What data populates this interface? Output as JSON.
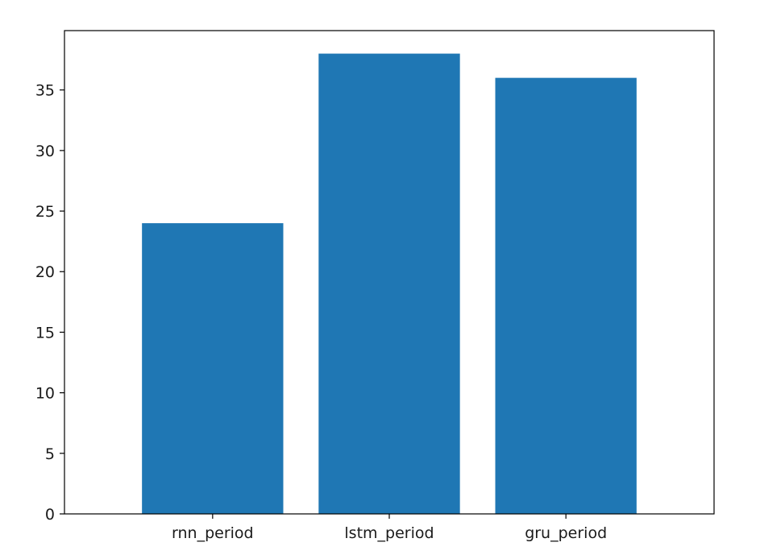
{
  "chart_data": {
    "type": "bar",
    "title": "",
    "xlabel": "",
    "ylabel": "",
    "categories": [
      "rnn_period",
      "lstm_period",
      "gru_period"
    ],
    "values": [
      24,
      38,
      36
    ],
    "ylim": [
      0,
      39.9
    ],
    "yticks": [
      0,
      5,
      10,
      15,
      20,
      25,
      30,
      35
    ],
    "grid": false,
    "legend": "none",
    "colors": {
      "bar": "#1f77b4",
      "axes": "#000000",
      "text": "#1a1a1a",
      "background": "#ffffff"
    }
  }
}
